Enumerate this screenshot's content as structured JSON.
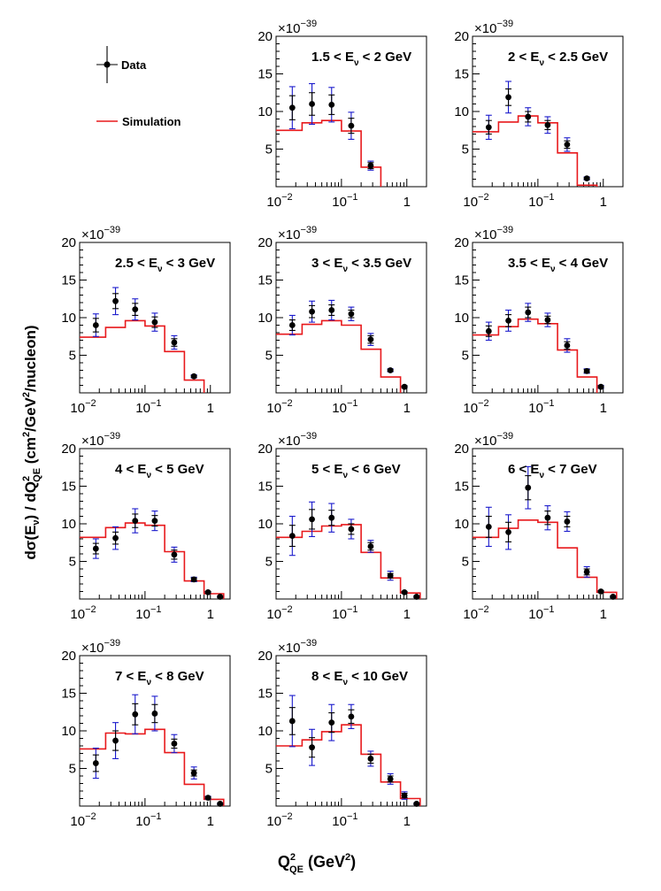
{
  "figure": {
    "y_axis_label": {
      "prefix": "dσ(E",
      "nu": "ν",
      "mid": ") / dQ",
      "sup2": "2",
      "qe": "QE",
      "units": "  (cm",
      "units_sup": "2",
      "units_rest": "/GeV",
      "units_sup2": "2",
      "units_end": "/nucleon)"
    },
    "x_axis_label": {
      "q": "Q",
      "sup": "2",
      "sub": "QE",
      "units": " (GeV",
      "units_sup": "2",
      "units_end": ")"
    },
    "legend": [
      {
        "label": "Data",
        "style": "points-with-errors",
        "color": "#000000"
      },
      {
        "label": "Simulation",
        "style": "line",
        "color": "#e8191c"
      }
    ]
  },
  "chart_data": [
    {
      "type": "line",
      "title": "1.5 < E_ν < 2 GeV",
      "title_parts": [
        "1.5 < E",
        "ν",
        " < 2 GeV"
      ],
      "xscale": "log",
      "xlim": [
        0.01,
        2
      ],
      "ylim": [
        0,
        20
      ],
      "y_multiplier": "×10",
      "y_exponent": "−39",
      "yticks": [
        "5",
        "10",
        "15",
        "20"
      ],
      "xticks": [
        "10",
        "10",
        "1"
      ],
      "xtick_exponents": [
        "−2",
        "−1",
        ""
      ],
      "data": {
        "x": [
          0.0177,
          0.0354,
          0.0707,
          0.141
        ],
        "y": [
          10.5,
          11.0,
          10.9,
          8.1
        ],
        "err_total": [
          2.8,
          2.7,
          2.3,
          1.8
        ],
        "err_stat": [
          1.6,
          1.5,
          1.3,
          1.0
        ]
      },
      "data_tail": {
        "x": [
          0.28
        ],
        "y": [
          2.8
        ],
        "err_total": [
          0.6
        ],
        "err_stat": [
          0.4
        ]
      },
      "simulation": {
        "edges": [
          0.01,
          0.025,
          0.05,
          0.1,
          0.2,
          0.4
        ],
        "values": [
          7.5,
          8.5,
          8.8,
          7.4,
          2.6
        ]
      }
    },
    {
      "type": "line",
      "title": "2 < E_ν < 2.5 GeV",
      "title_parts": [
        "2 < E",
        "ν",
        " < 2.5 GeV"
      ],
      "xscale": "log",
      "xlim": [
        0.01,
        2
      ],
      "ylim": [
        0,
        20
      ],
      "y_multiplier": "×10",
      "y_exponent": "−39",
      "yticks": [
        "5",
        "10",
        "15",
        "20"
      ],
      "xticks": [
        "10",
        "10",
        "1"
      ],
      "xtick_exponents": [
        "−2",
        "−1",
        ""
      ],
      "data": {
        "x": [
          0.0177,
          0.0354,
          0.0707,
          0.141,
          0.28,
          0.56
        ],
        "y": [
          7.9,
          11.9,
          9.3,
          8.2,
          5.6,
          1.1
        ],
        "err_total": [
          1.6,
          2.1,
          1.2,
          1.1,
          0.9,
          0.2
        ],
        "err_stat": [
          0.9,
          1.1,
          0.7,
          0.6,
          0.5,
          0.1
        ]
      },
      "simulation": {
        "edges": [
          0.01,
          0.025,
          0.05,
          0.1,
          0.2,
          0.4,
          0.8
        ],
        "values": [
          7.3,
          8.6,
          9.4,
          8.5,
          4.5,
          0.2
        ]
      }
    },
    {
      "type": "line",
      "title": "2.5 < E_ν < 3 GeV",
      "title_parts": [
        "2.5 < E",
        "ν",
        " < 3 GeV"
      ],
      "xscale": "log",
      "xlim": [
        0.01,
        2
      ],
      "ylim": [
        0,
        20
      ],
      "y_multiplier": "×10",
      "y_exponent": "−39",
      "yticks": [
        "5",
        "10",
        "15",
        "20"
      ],
      "xticks": [
        "10",
        "10",
        "1"
      ],
      "xtick_exponents": [
        "−2",
        "−1",
        ""
      ],
      "data": {
        "x": [
          0.0177,
          0.0354,
          0.0707,
          0.141,
          0.28,
          0.56
        ],
        "y": [
          9.0,
          12.2,
          11.1,
          9.4,
          6.7,
          2.2
        ],
        "err_total": [
          1.5,
          1.8,
          1.4,
          1.2,
          0.9,
          0.2
        ],
        "err_stat": [
          0.9,
          1.0,
          0.8,
          0.7,
          0.5,
          0.1
        ]
      },
      "simulation": {
        "edges": [
          0.01,
          0.025,
          0.05,
          0.1,
          0.2,
          0.4,
          0.8
        ],
        "values": [
          7.4,
          8.7,
          9.6,
          8.9,
          5.5,
          1.7
        ]
      }
    },
    {
      "type": "line",
      "title": "3 < E_ν < 3.5 GeV",
      "title_parts": [
        "3 < E",
        "ν",
        " < 3.5 GeV"
      ],
      "xscale": "log",
      "xlim": [
        0.01,
        2
      ],
      "ylim": [
        0,
        20
      ],
      "y_multiplier": "×10",
      "y_exponent": "−39",
      "yticks": [
        "5",
        "10",
        "15",
        "20"
      ],
      "xticks": [
        "10",
        "10",
        "1"
      ],
      "xtick_exponents": [
        "−2",
        "−1",
        ""
      ],
      "data": {
        "x": [
          0.0177,
          0.0354,
          0.0707,
          0.141,
          0.28,
          0.56,
          0.92
        ],
        "y": [
          9.0,
          10.8,
          11.0,
          10.5,
          7.1,
          3.0,
          0.8
        ],
        "err_total": [
          1.3,
          1.4,
          1.3,
          0.9,
          0.8,
          0.2,
          0.1
        ],
        "err_stat": [
          0.7,
          0.8,
          0.7,
          0.5,
          0.5,
          0.1,
          0.1
        ]
      },
      "simulation": {
        "edges": [
          0.01,
          0.025,
          0.05,
          0.1,
          0.2,
          0.4,
          0.8
        ],
        "values": [
          7.8,
          9.1,
          9.6,
          9.0,
          5.8,
          2.1
        ]
      }
    },
    {
      "type": "line",
      "title": "3.5 < E_ν < 4 GeV",
      "title_parts": [
        "3.5 < E",
        "ν",
        " < 4 GeV"
      ],
      "xscale": "log",
      "xlim": [
        0.01,
        2
      ],
      "ylim": [
        0,
        20
      ],
      "y_multiplier": "×10",
      "y_exponent": "−39",
      "yticks": [
        "5",
        "10",
        "15",
        "20"
      ],
      "xticks": [
        "10",
        "10",
        "1"
      ],
      "xtick_exponents": [
        "−2",
        "−1",
        ""
      ],
      "data": {
        "x": [
          0.0177,
          0.0354,
          0.0707,
          0.141,
          0.28,
          0.56,
          0.92
        ],
        "y": [
          8.2,
          9.6,
          10.7,
          9.7,
          6.3,
          2.9,
          0.8
        ],
        "err_total": [
          1.2,
          1.4,
          1.2,
          0.9,
          0.9,
          0.3,
          0.2
        ],
        "err_stat": [
          0.7,
          0.8,
          0.7,
          0.5,
          0.5,
          0.2,
          0.1
        ]
      },
      "simulation": {
        "edges": [
          0.01,
          0.025,
          0.05,
          0.1,
          0.2,
          0.4,
          0.8
        ],
        "values": [
          7.7,
          8.8,
          9.8,
          9.2,
          5.7,
          2.1
        ]
      }
    },
    {
      "type": "line",
      "title": "4 < E_ν < 5 GeV",
      "title_parts": [
        "4 < E",
        "ν",
        " < 5 GeV"
      ],
      "xscale": "log",
      "xlim": [
        0.01,
        2
      ],
      "ylim": [
        0,
        20
      ],
      "y_multiplier": "×10",
      "y_exponent": "−39",
      "yticks": [
        "5",
        "10",
        "15",
        "20"
      ],
      "xticks": [
        "10",
        "10",
        "1"
      ],
      "xtick_exponents": [
        "−2",
        "−1",
        ""
      ],
      "data": {
        "x": [
          0.0177,
          0.0354,
          0.0707,
          0.141,
          0.28,
          0.56,
          0.92,
          1.41
        ],
        "y": [
          6.7,
          8.1,
          10.4,
          10.4,
          5.9,
          2.6,
          0.9,
          0.3
        ],
        "err_total": [
          1.3,
          1.5,
          1.6,
          1.3,
          1.0,
          0.3,
          0.1,
          0.1
        ],
        "err_stat": [
          0.7,
          0.8,
          0.9,
          0.7,
          0.6,
          0.2,
          0.1,
          0.1
        ]
      },
      "simulation": {
        "edges": [
          0.01,
          0.025,
          0.05,
          0.1,
          0.2,
          0.4,
          0.8,
          1.6
        ],
        "values": [
          8.2,
          9.5,
          10.1,
          9.8,
          6.3,
          2.4,
          0.7
        ]
      }
    },
    {
      "type": "line",
      "title": "5 < E_ν < 6 GeV",
      "title_parts": [
        "5 < E",
        "ν",
        " < 6 GeV"
      ],
      "xscale": "log",
      "xlim": [
        0.01,
        2
      ],
      "ylim": [
        0,
        20
      ],
      "y_multiplier": "×10",
      "y_exponent": "−39",
      "yticks": [
        "5",
        "10",
        "15",
        "20"
      ],
      "xticks": [
        "10",
        "10",
        "1"
      ],
      "xtick_exponents": [
        "−2",
        "−1",
        ""
      ],
      "data": {
        "x": [
          0.0177,
          0.0354,
          0.0707,
          0.141,
          0.28,
          0.56,
          0.92,
          1.41
        ],
        "y": [
          8.4,
          10.6,
          10.8,
          9.3,
          7.0,
          3.1,
          0.9,
          0.3
        ],
        "err_total": [
          2.6,
          2.3,
          1.9,
          1.3,
          0.8,
          0.6,
          0.1,
          0.1
        ],
        "err_stat": [
          1.4,
          1.3,
          1.0,
          0.7,
          0.5,
          0.3,
          0.1,
          0.1
        ]
      },
      "simulation": {
        "edges": [
          0.01,
          0.025,
          0.05,
          0.1,
          0.2,
          0.4,
          0.8,
          1.6
        ],
        "values": [
          8.2,
          9.0,
          9.7,
          9.9,
          6.2,
          2.8,
          0.8
        ]
      }
    },
    {
      "type": "line",
      "title": "6 < E_ν < 7 GeV",
      "title_parts": [
        "6 < E",
        "ν",
        " < 7 GeV"
      ],
      "xscale": "log",
      "xlim": [
        0.01,
        2
      ],
      "ylim": [
        0,
        20
      ],
      "y_multiplier": "×10",
      "y_exponent": "−39",
      "yticks": [
        "5",
        "10",
        "15",
        "20"
      ],
      "xticks": [
        "10",
        "10",
        "1"
      ],
      "xtick_exponents": [
        "−2",
        "−1",
        ""
      ],
      "data": {
        "x": [
          0.0177,
          0.0354,
          0.0707,
          0.141,
          0.28,
          0.56,
          0.92,
          1.41
        ],
        "y": [
          9.6,
          8.9,
          14.8,
          10.8,
          10.3,
          3.6,
          1.0,
          0.3
        ],
        "err_total": [
          2.6,
          2.3,
          2.8,
          1.6,
          1.3,
          0.7,
          0.1,
          0.1
        ],
        "err_stat": [
          1.4,
          1.3,
          1.6,
          0.9,
          0.7,
          0.4,
          0.1,
          0.1
        ]
      },
      "simulation": {
        "edges": [
          0.01,
          0.025,
          0.05,
          0.1,
          0.2,
          0.4,
          0.8,
          1.6
        ],
        "values": [
          8.2,
          9.4,
          10.5,
          10.2,
          6.8,
          2.9,
          0.9
        ]
      }
    },
    {
      "type": "line",
      "title": "7 < E_ν < 8 GeV",
      "title_parts": [
        "7 < E",
        "ν",
        " < 8 GeV"
      ],
      "xscale": "log",
      "xlim": [
        0.01,
        2
      ],
      "ylim": [
        0,
        20
      ],
      "y_multiplier": "×10",
      "y_exponent": "−39",
      "yticks": [
        "5",
        "10",
        "15",
        "20"
      ],
      "xticks": [
        "10",
        "10",
        "1"
      ],
      "xtick_exponents": [
        "−2",
        "−1",
        ""
      ],
      "data": {
        "x": [
          0.0177,
          0.0354,
          0.0707,
          0.141,
          0.28,
          0.56,
          0.92,
          1.41
        ],
        "y": [
          5.7,
          8.7,
          12.2,
          12.3,
          8.3,
          4.4,
          1.1,
          0.3
        ],
        "err_total": [
          2.0,
          2.4,
          2.6,
          2.3,
          1.2,
          0.8,
          0.2,
          0.1
        ],
        "err_stat": [
          1.1,
          1.3,
          1.4,
          1.2,
          0.6,
          0.4,
          0.1,
          0.1
        ]
      },
      "simulation": {
        "edges": [
          0.01,
          0.025,
          0.05,
          0.1,
          0.2,
          0.4,
          0.8,
          1.6
        ],
        "values": [
          7.6,
          9.7,
          9.6,
          10.2,
          7.1,
          2.9,
          0.9
        ]
      }
    },
    {
      "type": "line",
      "title": "8 < E_ν < 10 GeV",
      "title_parts": [
        "8 < E",
        "ν",
        " < 10 GeV"
      ],
      "xscale": "log",
      "xlim": [
        0.01,
        2
      ],
      "ylim": [
        0,
        20
      ],
      "y_multiplier": "×10",
      "y_exponent": "−39",
      "yticks": [
        "5",
        "10",
        "15",
        "20"
      ],
      "xticks": [
        "10",
        "10",
        "1"
      ],
      "xtick_exponents": [
        "−2",
        "−1",
        ""
      ],
      "data": {
        "x": [
          0.0177,
          0.0354,
          0.0707,
          0.141,
          0.28,
          0.56,
          0.92,
          1.41
        ],
        "y": [
          11.3,
          7.8,
          11.1,
          11.9,
          6.3,
          3.6,
          1.4,
          0.3
        ],
        "err_total": [
          3.4,
          2.4,
          2.4,
          1.6,
          1.0,
          0.7,
          0.5,
          0.1
        ],
        "err_stat": [
          1.8,
          1.3,
          1.3,
          0.9,
          0.6,
          0.4,
          0.3,
          0.1
        ]
      },
      "simulation": {
        "edges": [
          0.01,
          0.025,
          0.05,
          0.1,
          0.2,
          0.4,
          0.8,
          1.6
        ],
        "values": [
          8.0,
          8.8,
          9.9,
          10.8,
          6.9,
          3.2,
          1.0
        ]
      }
    }
  ]
}
